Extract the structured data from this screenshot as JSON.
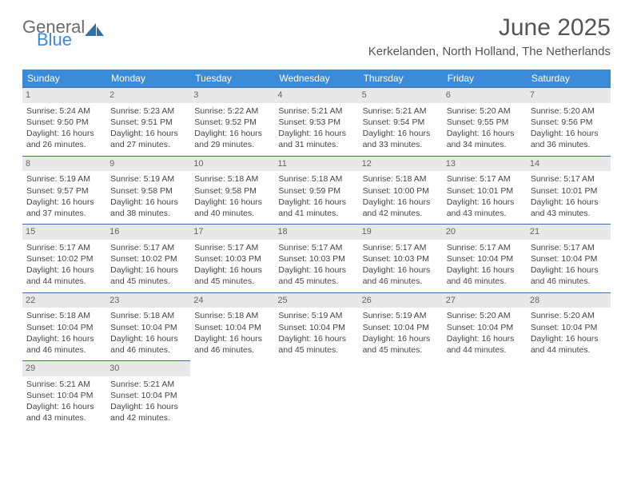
{
  "brand": {
    "general": "General",
    "blue": "Blue"
  },
  "title": "June 2025",
  "location": "Kerkelanden, North Holland, The Netherlands",
  "colors": {
    "header_bg": "#3a8bd8",
    "header_text": "#ffffff",
    "daybar_bg": "#e8e8e8",
    "daybar_border": "#3a6ea5",
    "text": "#444444",
    "title_text": "#555555"
  },
  "weekdays": [
    "Sunday",
    "Monday",
    "Tuesday",
    "Wednesday",
    "Thursday",
    "Friday",
    "Saturday"
  ],
  "weeks": [
    [
      {
        "n": "1",
        "sr": "Sunrise: 5:24 AM",
        "ss": "Sunset: 9:50 PM",
        "dl": "Daylight: 16 hours and 26 minutes."
      },
      {
        "n": "2",
        "sr": "Sunrise: 5:23 AM",
        "ss": "Sunset: 9:51 PM",
        "dl": "Daylight: 16 hours and 27 minutes."
      },
      {
        "n": "3",
        "sr": "Sunrise: 5:22 AM",
        "ss": "Sunset: 9:52 PM",
        "dl": "Daylight: 16 hours and 29 minutes."
      },
      {
        "n": "4",
        "sr": "Sunrise: 5:21 AM",
        "ss": "Sunset: 9:53 PM",
        "dl": "Daylight: 16 hours and 31 minutes."
      },
      {
        "n": "5",
        "sr": "Sunrise: 5:21 AM",
        "ss": "Sunset: 9:54 PM",
        "dl": "Daylight: 16 hours and 33 minutes."
      },
      {
        "n": "6",
        "sr": "Sunrise: 5:20 AM",
        "ss": "Sunset: 9:55 PM",
        "dl": "Daylight: 16 hours and 34 minutes."
      },
      {
        "n": "7",
        "sr": "Sunrise: 5:20 AM",
        "ss": "Sunset: 9:56 PM",
        "dl": "Daylight: 16 hours and 36 minutes."
      }
    ],
    [
      {
        "n": "8",
        "sr": "Sunrise: 5:19 AM",
        "ss": "Sunset: 9:57 PM",
        "dl": "Daylight: 16 hours and 37 minutes."
      },
      {
        "n": "9",
        "sr": "Sunrise: 5:19 AM",
        "ss": "Sunset: 9:58 PM",
        "dl": "Daylight: 16 hours and 38 minutes."
      },
      {
        "n": "10",
        "sr": "Sunrise: 5:18 AM",
        "ss": "Sunset: 9:58 PM",
        "dl": "Daylight: 16 hours and 40 minutes."
      },
      {
        "n": "11",
        "sr": "Sunrise: 5:18 AM",
        "ss": "Sunset: 9:59 PM",
        "dl": "Daylight: 16 hours and 41 minutes."
      },
      {
        "n": "12",
        "sr": "Sunrise: 5:18 AM",
        "ss": "Sunset: 10:00 PM",
        "dl": "Daylight: 16 hours and 42 minutes."
      },
      {
        "n": "13",
        "sr": "Sunrise: 5:17 AM",
        "ss": "Sunset: 10:01 PM",
        "dl": "Daylight: 16 hours and 43 minutes."
      },
      {
        "n": "14",
        "sr": "Sunrise: 5:17 AM",
        "ss": "Sunset: 10:01 PM",
        "dl": "Daylight: 16 hours and 43 minutes."
      }
    ],
    [
      {
        "n": "15",
        "sr": "Sunrise: 5:17 AM",
        "ss": "Sunset: 10:02 PM",
        "dl": "Daylight: 16 hours and 44 minutes."
      },
      {
        "n": "16",
        "sr": "Sunrise: 5:17 AM",
        "ss": "Sunset: 10:02 PM",
        "dl": "Daylight: 16 hours and 45 minutes."
      },
      {
        "n": "17",
        "sr": "Sunrise: 5:17 AM",
        "ss": "Sunset: 10:03 PM",
        "dl": "Daylight: 16 hours and 45 minutes."
      },
      {
        "n": "18",
        "sr": "Sunrise: 5:17 AM",
        "ss": "Sunset: 10:03 PM",
        "dl": "Daylight: 16 hours and 45 minutes."
      },
      {
        "n": "19",
        "sr": "Sunrise: 5:17 AM",
        "ss": "Sunset: 10:03 PM",
        "dl": "Daylight: 16 hours and 46 minutes."
      },
      {
        "n": "20",
        "sr": "Sunrise: 5:17 AM",
        "ss": "Sunset: 10:04 PM",
        "dl": "Daylight: 16 hours and 46 minutes."
      },
      {
        "n": "21",
        "sr": "Sunrise: 5:17 AM",
        "ss": "Sunset: 10:04 PM",
        "dl": "Daylight: 16 hours and 46 minutes."
      }
    ],
    [
      {
        "n": "22",
        "sr": "Sunrise: 5:18 AM",
        "ss": "Sunset: 10:04 PM",
        "dl": "Daylight: 16 hours and 46 minutes."
      },
      {
        "n": "23",
        "sr": "Sunrise: 5:18 AM",
        "ss": "Sunset: 10:04 PM",
        "dl": "Daylight: 16 hours and 46 minutes."
      },
      {
        "n": "24",
        "sr": "Sunrise: 5:18 AM",
        "ss": "Sunset: 10:04 PM",
        "dl": "Daylight: 16 hours and 46 minutes."
      },
      {
        "n": "25",
        "sr": "Sunrise: 5:19 AM",
        "ss": "Sunset: 10:04 PM",
        "dl": "Daylight: 16 hours and 45 minutes."
      },
      {
        "n": "26",
        "sr": "Sunrise: 5:19 AM",
        "ss": "Sunset: 10:04 PM",
        "dl": "Daylight: 16 hours and 45 minutes."
      },
      {
        "n": "27",
        "sr": "Sunrise: 5:20 AM",
        "ss": "Sunset: 10:04 PM",
        "dl": "Daylight: 16 hours and 44 minutes."
      },
      {
        "n": "28",
        "sr": "Sunrise: 5:20 AM",
        "ss": "Sunset: 10:04 PM",
        "dl": "Daylight: 16 hours and 44 minutes."
      }
    ],
    [
      {
        "n": "29",
        "sr": "Sunrise: 5:21 AM",
        "ss": "Sunset: 10:04 PM",
        "dl": "Daylight: 16 hours and 43 minutes."
      },
      {
        "n": "30",
        "sr": "Sunrise: 5:21 AM",
        "ss": "Sunset: 10:04 PM",
        "dl": "Daylight: 16 hours and 42 minutes."
      },
      null,
      null,
      null,
      null,
      null
    ]
  ]
}
